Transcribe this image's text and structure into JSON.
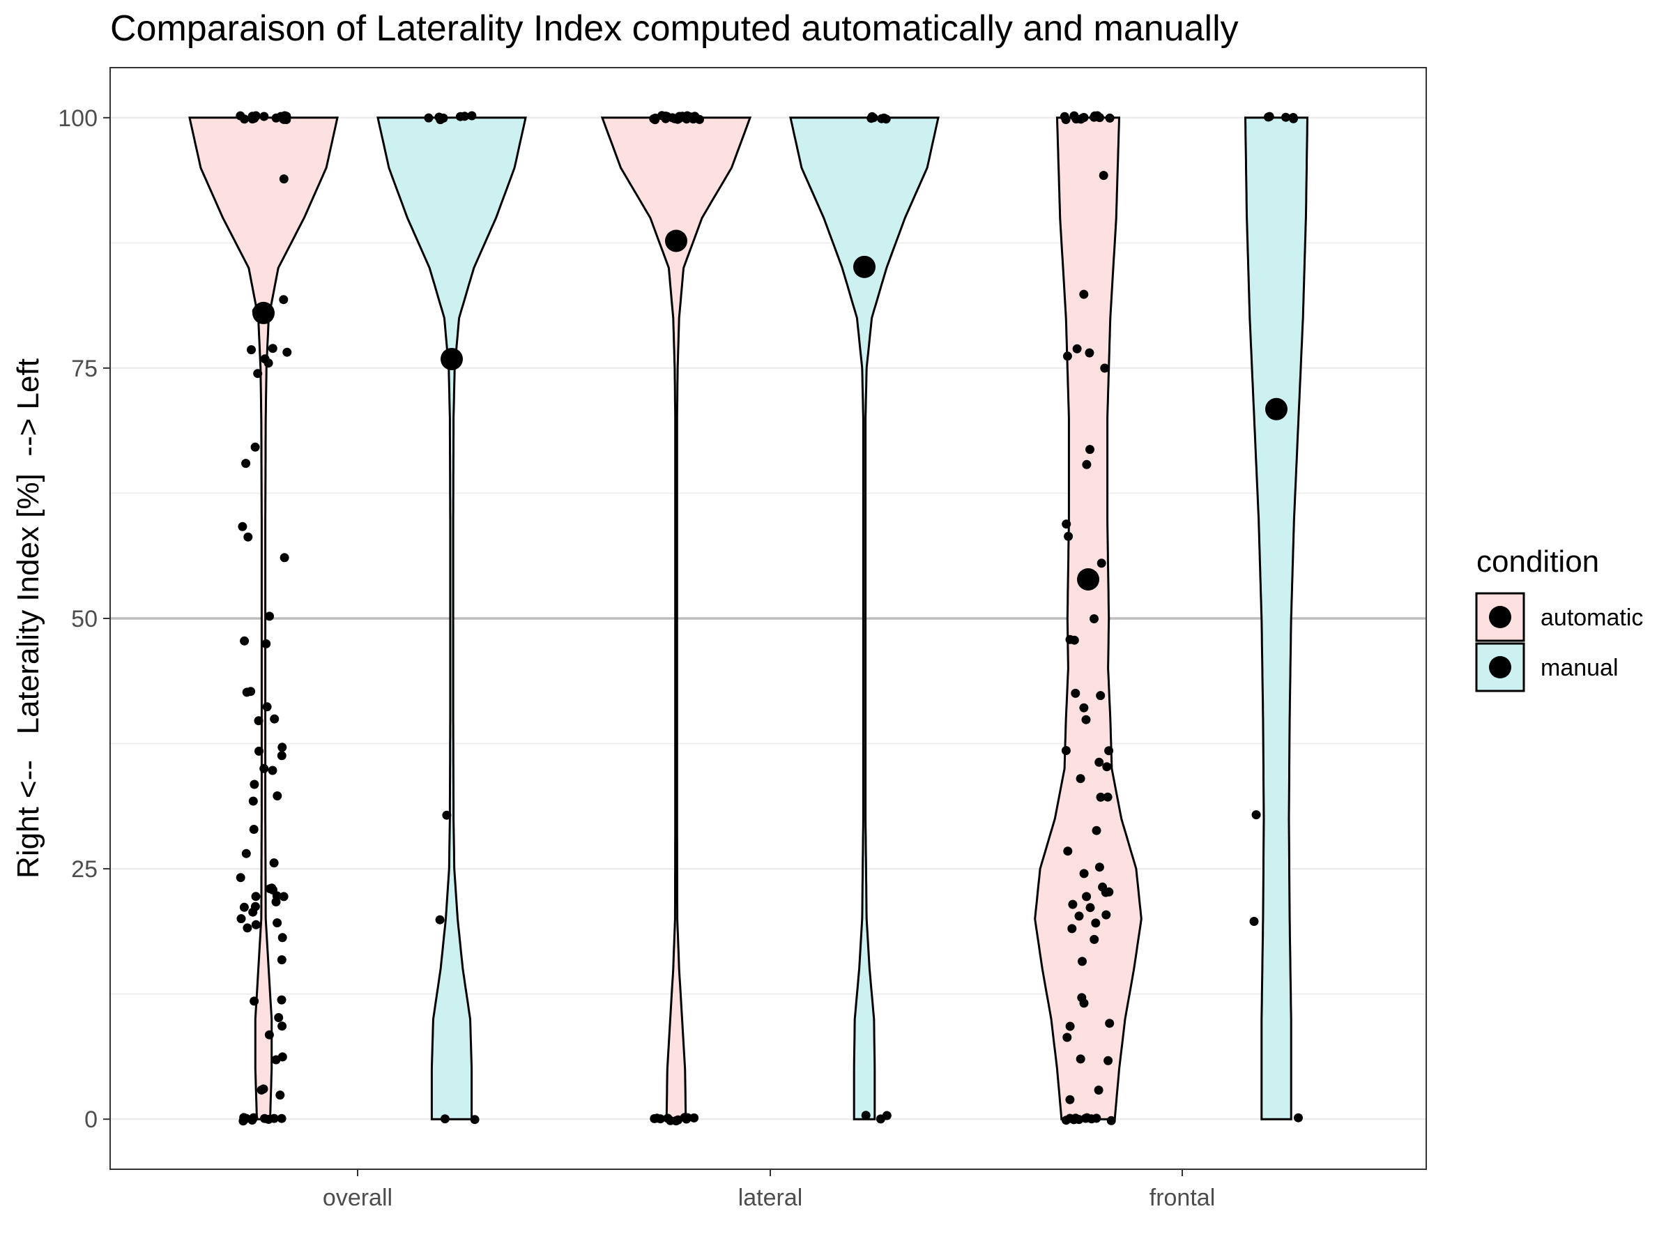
{
  "chart_data": {
    "type": "violin",
    "title": "Comparaison of Laterality Index computed automatically and manually",
    "xlabel": "",
    "ylabel": "Right <--   Laterality Index [%]  --> Left",
    "ylim": [
      -5,
      105
    ],
    "y_ticks": [
      0,
      25,
      50,
      75,
      100
    ],
    "y_tick_labels": [
      "0",
      "25",
      "50",
      "75",
      "100"
    ],
    "categories": [
      "overall",
      "lateral",
      "frontal"
    ],
    "reference_line": 50,
    "grid": true,
    "legend": {
      "title": "condition",
      "placement": "right"
    },
    "series": [
      {
        "name": "automatic",
        "color": "#fde0e0",
        "groups": [
          {
            "category": "overall",
            "mean": 80.5,
            "points": [
              100,
              100,
              100,
              100,
              100,
              100,
              100,
              100,
              100,
              100,
              100,
              100,
              100,
              100,
              100,
              100,
              100,
              93.7,
              82,
              80.5,
              77,
              76.7,
              76.5,
              76,
              75.5,
              74.5,
              67.2,
              65.5,
              59.2,
              58.2,
              56,
              50.2,
              47.6,
              47.3,
              42.6,
              42.6,
              41,
              40,
              39.7,
              37,
              36.8,
              36.5,
              35.1,
              34.7,
              33.4,
              32.3,
              31.7,
              29,
              26.5,
              25.4,
              24.1,
              23,
              22.9,
              22.7,
              22.4,
              22.3,
              22.1,
              21.9,
              21.2,
              21,
              20.8,
              20,
              19.7,
              19.5,
              18.9,
              18.2,
              15.8,
              11.9,
              11.7,
              10.2,
              9.3,
              8.6,
              6.1,
              6,
              3.1,
              3,
              2.2,
              0,
              0,
              0,
              0,
              0,
              0,
              0,
              0,
              0,
              0
            ],
            "density": [
              [
                0,
                0.09
              ],
              [
                5,
                0.11
              ],
              [
                10,
                0.11
              ],
              [
                15,
                0.07
              ],
              [
                20,
                0.03
              ],
              [
                30,
                0.025
              ],
              [
                40,
                0.025
              ],
              [
                50,
                0.025
              ],
              [
                60,
                0.025
              ],
              [
                70,
                0.03
              ],
              [
                75,
                0.04
              ],
              [
                80,
                0.07
              ],
              [
                85,
                0.2
              ],
              [
                90,
                0.55
              ],
              [
                95,
                0.85
              ],
              [
                100,
                1
              ]
            ]
          },
          {
            "category": "lateral",
            "mean": 87.7,
            "points": [
              100,
              100,
              100,
              100,
              100,
              100,
              100,
              100,
              100,
              100,
              100,
              100,
              100,
              100,
              100,
              100,
              100,
              100,
              100,
              100,
              100,
              100,
              100,
              100,
              100,
              100,
              0,
              0,
              0,
              0,
              0,
              0,
              0,
              0,
              0,
              0,
              0,
              0
            ],
            "density": [
              [
                0,
                0.13
              ],
              [
                5,
                0.12
              ],
              [
                10,
                0.08
              ],
              [
                15,
                0.04
              ],
              [
                20,
                0.015
              ],
              [
                30,
                0.012
              ],
              [
                50,
                0.012
              ],
              [
                70,
                0.012
              ],
              [
                75,
                0.02
              ],
              [
                80,
                0.04
              ],
              [
                85,
                0.1
              ],
              [
                90,
                0.35
              ],
              [
                95,
                0.75
              ],
              [
                100,
                1
              ]
            ]
          },
          {
            "category": "frontal",
            "mean": 53.9,
            "points": [
              100,
              100,
              100,
              100,
              100,
              100,
              100,
              100,
              100,
              100,
              100,
              100,
              94.2,
              82.5,
              76.8,
              76.6,
              76,
              75,
              66.7,
              65.4,
              59.3,
              58.3,
              55.6,
              50,
              47.8,
              47.7,
              42.6,
              42.5,
              41,
              40,
              37,
              36.9,
              35.6,
              35,
              34,
              32,
              32,
              29,
              26.7,
              25.3,
              24.5,
              23.2,
              22.8,
              22.5,
              22.3,
              21.3,
              21.2,
              20.6,
              20.2,
              19.4,
              19,
              18,
              15.8,
              12.1,
              11.4,
              9.6,
              9.3,
              8.3,
              6.1,
              6,
              2.8,
              2,
              0,
              0,
              0,
              0,
              0,
              0,
              0,
              0,
              0,
              0,
              0
            ],
            "density": [
              [
                0,
                0.36
              ],
              [
                5,
                0.42
              ],
              [
                10,
                0.5
              ],
              [
                15,
                0.62
              ],
              [
                20,
                0.72
              ],
              [
                25,
                0.65
              ],
              [
                30,
                0.45
              ],
              [
                35,
                0.32
              ],
              [
                40,
                0.3
              ],
              [
                45,
                0.27
              ],
              [
                50,
                0.28
              ],
              [
                55,
                0.27
              ],
              [
                60,
                0.26
              ],
              [
                65,
                0.26
              ],
              [
                70,
                0.26
              ],
              [
                75,
                0.28
              ],
              [
                80,
                0.3
              ],
              [
                85,
                0.34
              ],
              [
                90,
                0.38
              ],
              [
                95,
                0.4
              ],
              [
                100,
                0.42
              ]
            ]
          }
        ]
      },
      {
        "name": "manual",
        "color": "#cdf0f1",
        "groups": [
          {
            "category": "overall",
            "mean": 75.9,
            "points": [
              100,
              100,
              100,
              100,
              100,
              100,
              100,
              30.3,
              19.8,
              0,
              0
            ],
            "density": [
              [
                0,
                0.27
              ],
              [
                5,
                0.27
              ],
              [
                10,
                0.25
              ],
              [
                15,
                0.15
              ],
              [
                20,
                0.08
              ],
              [
                25,
                0.035
              ],
              [
                30,
                0.025
              ],
              [
                40,
                0.02
              ],
              [
                50,
                0.02
              ],
              [
                60,
                0.02
              ],
              [
                70,
                0.025
              ],
              [
                75,
                0.04
              ],
              [
                80,
                0.1
              ],
              [
                85,
                0.3
              ],
              [
                90,
                0.6
              ],
              [
                95,
                0.85
              ],
              [
                100,
                1
              ]
            ]
          },
          {
            "category": "lateral",
            "mean": 85.1,
            "points": [
              100,
              100,
              100,
              100,
              100,
              100,
              0.3,
              0.2,
              0
            ],
            "density": [
              [
                0,
                0.14
              ],
              [
                5,
                0.14
              ],
              [
                10,
                0.13
              ],
              [
                15,
                0.07
              ],
              [
                20,
                0.03
              ],
              [
                30,
                0.015
              ],
              [
                50,
                0.015
              ],
              [
                70,
                0.015
              ],
              [
                75,
                0.03
              ],
              [
                80,
                0.1
              ],
              [
                85,
                0.3
              ],
              [
                90,
                0.55
              ],
              [
                95,
                0.85
              ],
              [
                100,
                1
              ]
            ]
          },
          {
            "category": "frontal",
            "mean": 70.9,
            "points": [
              100,
              100,
              100,
              100,
              100,
              30.3,
              19.7,
              0.2
            ],
            "density": [
              [
                0,
                0.2
              ],
              [
                10,
                0.2
              ],
              [
                20,
                0.18
              ],
              [
                30,
                0.17
              ],
              [
                40,
                0.18
              ],
              [
                50,
                0.2
              ],
              [
                60,
                0.24
              ],
              [
                70,
                0.3
              ],
              [
                80,
                0.36
              ],
              [
                90,
                0.4
              ],
              [
                100,
                0.42
              ]
            ]
          }
        ]
      }
    ]
  }
}
